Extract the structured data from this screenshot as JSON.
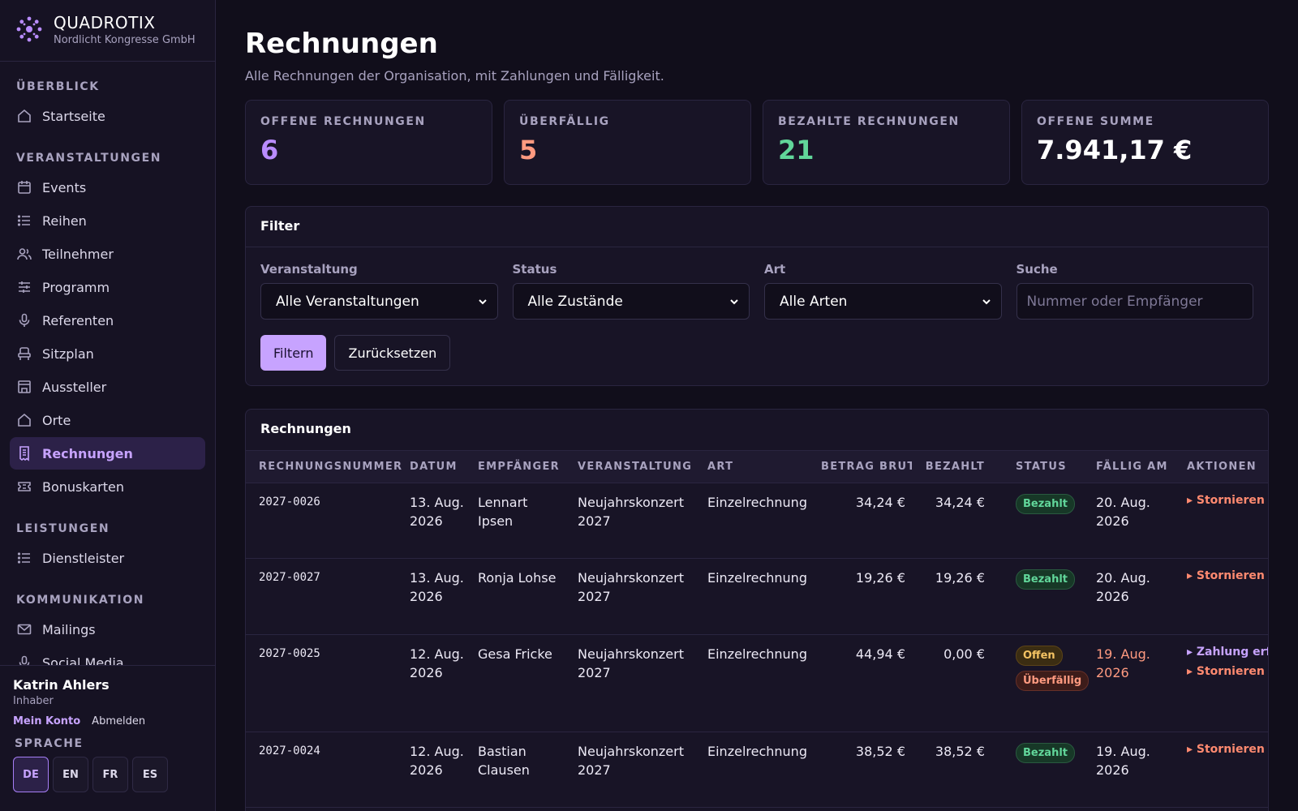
{
  "brand": {
    "name": "QUADROTIX",
    "org": "Nordlicht Kongresse GmbH"
  },
  "nav": {
    "sections": [
      {
        "title": "ÜBERBLICK",
        "items": [
          {
            "label": "Startseite",
            "icon": "home-icon"
          }
        ]
      },
      {
        "title": "VERANSTALTUNGEN",
        "items": [
          {
            "label": "Events",
            "icon": "calendar-icon"
          },
          {
            "label": "Reihen",
            "icon": "list-icon"
          },
          {
            "label": "Teilnehmer",
            "icon": "users-icon"
          },
          {
            "label": "Programm",
            "icon": "sliders-icon"
          },
          {
            "label": "Referenten",
            "icon": "microphone-icon"
          },
          {
            "label": "Sitzplan",
            "icon": "seat-icon"
          },
          {
            "label": "Aussteller",
            "icon": "store-icon"
          },
          {
            "label": "Orte",
            "icon": "home-icon"
          },
          {
            "label": "Rechnungen",
            "icon": "receipt-icon",
            "active": true
          },
          {
            "label": "Bonuskarten",
            "icon": "ticket-icon"
          }
        ]
      },
      {
        "title": "LEISTUNGEN",
        "items": [
          {
            "label": "Dienstleister",
            "icon": "list-icon"
          }
        ]
      },
      {
        "title": "KOMMUNIKATION",
        "items": [
          {
            "label": "Mailings",
            "icon": "mail-icon"
          },
          {
            "label": "Social Media",
            "icon": "share-icon"
          }
        ]
      }
    ]
  },
  "user": {
    "name": "Katrin Ahlers",
    "role": "Inhaber",
    "account_link": "Mein Konto",
    "logout_link": "Abmelden",
    "language_label": "SPRACHE",
    "languages": [
      "DE",
      "EN",
      "FR",
      "ES"
    ],
    "active_language": "DE"
  },
  "page": {
    "title": "Rechnungen",
    "subtitle": "Alle Rechnungen der Organisation, mit Zahlungen und Fälligkeit."
  },
  "stats": [
    {
      "label": "OFFENE RECHNUNGEN",
      "value": "6",
      "color": "#b98cff"
    },
    {
      "label": "ÜBERFÄLLIG",
      "value": "5",
      "color": "#ff9a80"
    },
    {
      "label": "BEZAHLTE RECHNUNGEN",
      "value": "21",
      "color": "#61d69a"
    },
    {
      "label": "OFFENE SUMME",
      "value": "7.941,17 €",
      "color": "#ffffff"
    }
  ],
  "filter": {
    "title": "Filter",
    "event_label": "Veranstaltung",
    "event_value": "Alle Veranstaltungen",
    "status_label": "Status",
    "status_value": "Alle Zustände",
    "type_label": "Art",
    "type_value": "Alle Arten",
    "search_label": "Suche",
    "search_placeholder": "Nummer oder Empfänger",
    "search_value": "",
    "apply_label": "Filtern",
    "reset_label": "Zurücksetzen"
  },
  "table": {
    "title": "Rechnungen",
    "columns": [
      "RECHNUNGSNUMMER",
      "DATUM",
      "EMPFÄNGER",
      "VERANSTALTUNG",
      "ART",
      "BETRAG BRUTTO",
      "BEZAHLT",
      "STATUS",
      "FÄLLIG AM",
      "AKTIONEN"
    ],
    "rows": [
      {
        "number": "2027-0026",
        "date": "13. Aug. 2026",
        "recipient": "Lennart Ipsen",
        "event": "Neujahrskonzert 2027",
        "type": "Einzelrechnung",
        "gross": "34,24 €",
        "paid": "34,24 €",
        "status": [
          "Bezahlt"
        ],
        "due": "20. Aug. 2026",
        "overdue": false,
        "actions": [
          "▸ Stornieren vorbereiten"
        ]
      },
      {
        "number": "2027-0027",
        "date": "13. Aug. 2026",
        "recipient": "Ronja Lohse",
        "event": "Neujahrskonzert 2027",
        "type": "Einzelrechnung",
        "gross": "19,26 €",
        "paid": "19,26 €",
        "status": [
          "Bezahlt"
        ],
        "due": "20. Aug. 2026",
        "overdue": false,
        "actions": [
          "▸ Stornieren vorbereiten"
        ]
      },
      {
        "number": "2027-0025",
        "date": "12. Aug. 2026",
        "recipient": "Gesa Fricke",
        "event": "Neujahrskonzert 2027",
        "type": "Einzelrechnung",
        "gross": "44,94 €",
        "paid": "0,00 €",
        "status": [
          "Offen",
          "Überfällig"
        ],
        "due": "19. Aug. 2026",
        "overdue": true,
        "actions": [
          "▸ Zahlung erfassen",
          "▸ Stornieren vorbereiten"
        ]
      },
      {
        "number": "2027-0024",
        "date": "12. Aug. 2026",
        "recipient": "Bastian Clausen",
        "event": "Neujahrskonzert 2027",
        "type": "Einzelrechnung",
        "gross": "38,52 €",
        "paid": "38,52 €",
        "status": [
          "Bezahlt"
        ],
        "due": "19. Aug. 2026",
        "overdue": false,
        "actions": [
          "▸ Stornieren vorbereiten"
        ]
      }
    ]
  },
  "colors": {
    "accent": "#c7a3ff",
    "paid": "#61d69a",
    "open": "#f4c363",
    "overdue": "#ff9a80"
  }
}
